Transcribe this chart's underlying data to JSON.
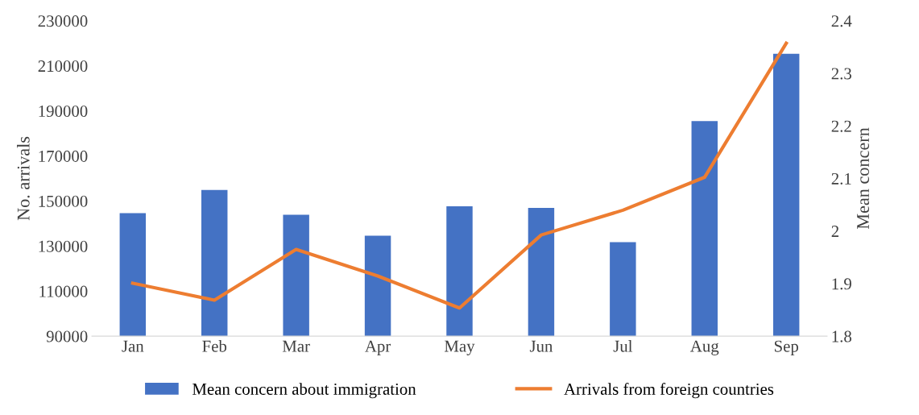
{
  "chart_data": {
    "type": "bar",
    "ylabel": "No. arrivals",
    "y2label": "Mean concern",
    "categories": [
      "Jan",
      "Feb",
      "Mar",
      "Apr",
      "May",
      "Jun",
      "Jul",
      "Aug",
      "Sep"
    ],
    "series": [
      {
        "name": "Mean concern about immigration",
        "axis": "y2",
        "color": "#4472c4",
        "values": [
          2.034,
          2.078,
          2.031,
          1.991,
          2.047,
          2.044,
          1.979,
          2.209,
          2.337
        ]
      },
      {
        "name": "Arrivals from foreign countries",
        "type": "line",
        "axis": "y",
        "color": "#ed7d31",
        "values": [
          113500,
          106000,
          128500,
          116700,
          102500,
          134900,
          145900,
          160500,
          220000
        ]
      }
    ],
    "ylim": [
      90000,
      230000
    ],
    "yticks": [
      90000,
      110000,
      130000,
      150000,
      170000,
      190000,
      210000,
      230000
    ],
    "y2lim": [
      1.8,
      2.4
    ],
    "y2ticks": [
      {
        "value": 1.8,
        "label": "1.8"
      },
      {
        "value": 1.9,
        "label": "1.9"
      },
      {
        "value": 2.0,
        "label": "2"
      },
      {
        "value": 2.1,
        "label": "2.1"
      },
      {
        "value": 2.2,
        "label": "2.2"
      },
      {
        "value": 2.3,
        "label": "2.3"
      },
      {
        "value": 2.4,
        "label": "2.4"
      }
    ],
    "grid": false,
    "legend": "bottom"
  }
}
